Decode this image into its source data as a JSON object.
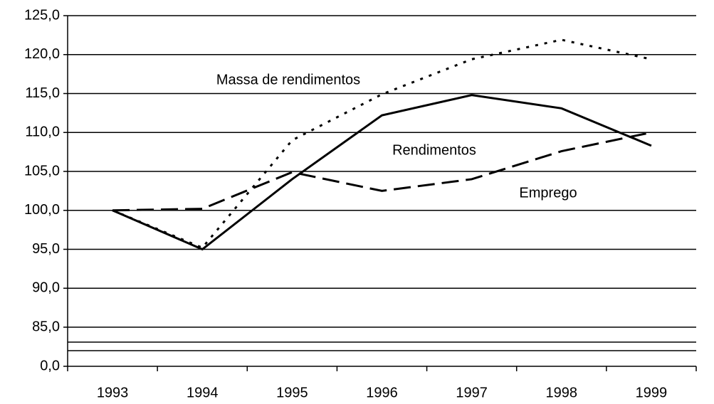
{
  "chart_data": {
    "type": "line",
    "categories": [
      "1993",
      "1994",
      "1995",
      "1996",
      "1997",
      "1998",
      "1999"
    ],
    "series": [
      {
        "name": "Massa de rendimentos",
        "color": "#000000",
        "dash": "dotted",
        "values": [
          100.0,
          95.2,
          109.0,
          114.9,
          119.4,
          121.9,
          119.4
        ]
      },
      {
        "name": "Rendimentos",
        "color": "#000000",
        "dash": "solid",
        "values": [
          100.0,
          95.0,
          104.0,
          112.2,
          114.8,
          113.1,
          108.3
        ]
      },
      {
        "name": "Emprego",
        "color": "#000000",
        "dash": "dashed",
        "values": [
          100.0,
          100.2,
          104.9,
          102.5,
          104.0,
          107.6,
          110.0
        ]
      }
    ],
    "ylim": [
      0,
      125
    ],
    "yticks": [
      {
        "value": 0,
        "label": "0,0"
      },
      {
        "value": 85,
        "label": "85,0"
      },
      {
        "value": 90,
        "label": "90,0"
      },
      {
        "value": 95,
        "label": "95,0"
      },
      {
        "value": 100,
        "label": "100,0"
      },
      {
        "value": 105,
        "label": "105,0"
      },
      {
        "value": 110,
        "label": "110,0"
      },
      {
        "value": 115,
        "label": "115,0"
      },
      {
        "value": 120,
        "label": "120,0"
      },
      {
        "value": 125,
        "label": "125,0"
      }
    ],
    "grid": true
  }
}
